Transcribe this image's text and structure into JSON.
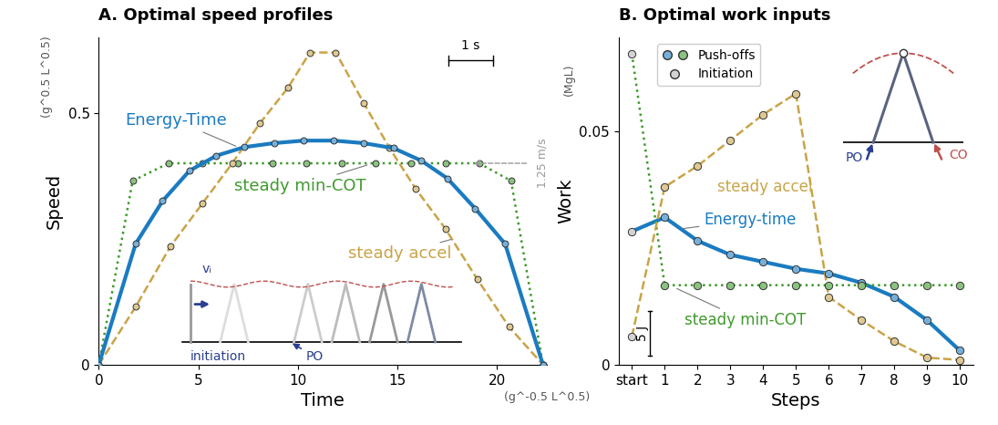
{
  "chart_data": [
    {
      "type": "line",
      "title": "A. Optimal speed profiles",
      "x_label": "Time",
      "y_label": "Speed",
      "x_unit": "(g^-0.5 L^0.5)",
      "y_unit": "(g^0.5 L^0.5)",
      "scale_bar": "1 s",
      "xlim": [
        0,
        22.5
      ],
      "xticks": [
        0,
        5,
        10,
        15,
        20
      ],
      "ylim": [
        0,
        0.65
      ],
      "yticks": [
        0,
        0.5
      ],
      "series": [
        {
          "name": "Energy-Time",
          "color": "#1a7bc1",
          "line_style": "solid",
          "marker": "o",
          "x": [
            0,
            1.85,
            3.2,
            4.55,
            5.9,
            7.3,
            8.8,
            10.3,
            11.8,
            13.3,
            14.8,
            16.2,
            17.5,
            18.9,
            20.4,
            22.3
          ],
          "values": [
            0,
            0.24,
            0.325,
            0.385,
            0.415,
            0.432,
            0.44,
            0.445,
            0.445,
            0.44,
            0.43,
            0.405,
            0.37,
            0.31,
            0.24,
            0
          ]
        },
        {
          "name": "steady min-COT",
          "color": "#3f9a2c",
          "line_style": "dotted",
          "marker": "o",
          "x": [
            0,
            1.7,
            3.5,
            5.2,
            7.0,
            8.7,
            10.4,
            12.2,
            13.9,
            15.7,
            17.4,
            19.1,
            20.7,
            22.3
          ],
          "values": [
            0,
            0.365,
            0.4,
            0.4,
            0.4,
            0.4,
            0.4,
            0.4,
            0.4,
            0.4,
            0.4,
            0.4,
            0.365,
            0
          ]
        },
        {
          "name": "steady accel",
          "color": "#c9a447",
          "line_style": "dashed",
          "marker": "o",
          "x": [
            0,
            1.85,
            3.6,
            5.2,
            6.7,
            8.1,
            9.5,
            10.6,
            11.9,
            13.3,
            14.6,
            15.9,
            17.4,
            19.0,
            20.6,
            22.3
          ],
          "values": [
            0,
            0.115,
            0.235,
            0.32,
            0.4,
            0.48,
            0.55,
            0.62,
            0.62,
            0.52,
            0.43,
            0.35,
            0.27,
            0.17,
            0.075,
            0
          ]
        }
      ],
      "reference": {
        "label": "1.25 m/s",
        "value": 0.4
      },
      "annotations": [
        "initiation",
        "PO",
        "vᵢ"
      ]
    },
    {
      "type": "line",
      "title": "B. Optimal work inputs",
      "x_label": "Steps",
      "y_label": "Work",
      "y_unit": "(MgL)",
      "scale_bar": "5 J",
      "categories": [
        "start",
        "1",
        "2",
        "3",
        "4",
        "5",
        "6",
        "7",
        "8",
        "9",
        "10"
      ],
      "ylim": [
        0,
        0.07
      ],
      "yticks": [
        0,
        0.05
      ],
      "legend": "upper left",
      "legend_entries": [
        "Push-offs",
        "Initiation"
      ],
      "series": [
        {
          "name": "Energy-time",
          "color": "#1a7bc1",
          "line_style": "solid",
          "marker": "o",
          "values": [
            0.0285,
            0.0315,
            0.0265,
            0.0235,
            0.022,
            0.0205,
            0.0195,
            0.0175,
            0.0145,
            0.0095,
            0.003
          ]
        },
        {
          "name": "steady min-COT",
          "color": "#3f9a2c",
          "line_style": "dotted",
          "marker": "o",
          "values": [
            0.0665,
            0.017,
            0.017,
            0.017,
            0.017,
            0.017,
            0.017,
            0.017,
            0.017,
            0.017,
            0.017
          ]
        },
        {
          "name": "steady accel",
          "color": "#c9a447",
          "line_style": "dashed",
          "marker": "o",
          "values": [
            0.006,
            0.038,
            0.0425,
            0.048,
            0.0535,
            0.058,
            0.0145,
            0.0095,
            0.005,
            0.0015,
            0.001
          ]
        }
      ],
      "annotations": [
        "PO",
        "CO"
      ]
    }
  ]
}
